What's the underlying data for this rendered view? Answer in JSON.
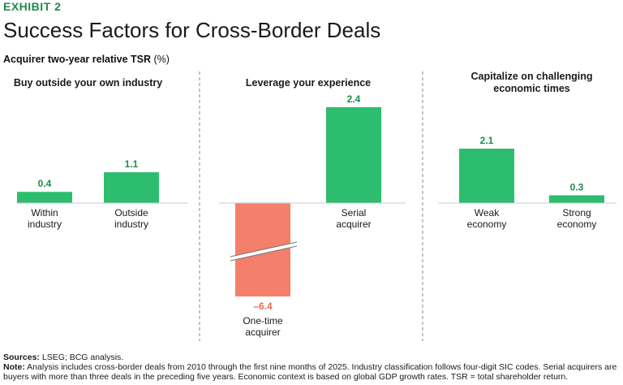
{
  "header": {
    "exhibit": "EXHIBIT 2",
    "title": "Success Factors for Cross-Border Deals",
    "ylabel_main": "Acquirer two-year relative TSR",
    "ylabel_unit": "(%)"
  },
  "colors": {
    "positive": "#2dbd6e",
    "negative": "#f47f6b",
    "accent_text": "#1f8a4c",
    "negative_text": "#e8684f"
  },
  "chart_data": [
    {
      "type": "bar",
      "title": "Buy outside your own industry",
      "categories": [
        "Within industry",
        "Outside industry"
      ],
      "category_lines": [
        [
          "Within",
          "industry"
        ],
        [
          "Outside",
          "industry"
        ]
      ],
      "values": [
        0.4,
        1.1
      ],
      "value_labels": [
        "0.4",
        "1.1"
      ]
    },
    {
      "type": "bar",
      "title": "Leverage your experience",
      "categories": [
        "One-time acquirer",
        "Serial acquirer"
      ],
      "category_lines": [
        [
          "One-time",
          "acquirer"
        ],
        [
          "Serial",
          "acquirer"
        ]
      ],
      "values": [
        -6.4,
        2.4
      ],
      "value_labels": [
        "–6.4",
        "2.4"
      ],
      "axis_break": true
    },
    {
      "type": "bar",
      "title": "Capitalize on challenging economic times",
      "title_lines": [
        "Capitalize on challenging",
        "economic times"
      ],
      "categories": [
        "Weak economy",
        "Strong economy"
      ],
      "category_lines": [
        [
          "Weak",
          "economy"
        ],
        [
          "Strong",
          "economy"
        ]
      ],
      "values": [
        2.1,
        0.3
      ],
      "value_labels": [
        "2.1",
        "0.3"
      ]
    }
  ],
  "footer": {
    "sources_label": "Sources:",
    "sources_text": " LSEG; BCG analysis.",
    "note_label": "Note:",
    "note_text": " Analysis includes cross-border deals from 2010 through the first nine months of 2025. Industry classification follows four-digit SIC codes. Serial acquirers are buyers with more than three deals in the preceding five years. Economic context is based on global GDP growth rates. TSR = total shareholder return."
  }
}
